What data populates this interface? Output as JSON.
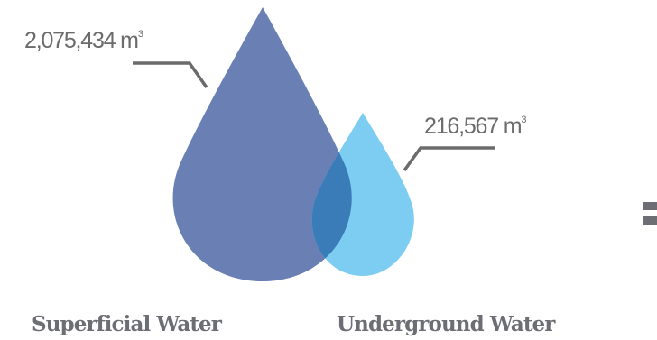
{
  "chart_data": {
    "type": "proportional-area",
    "categories": [
      "Superficial Water",
      "Underground Water"
    ],
    "values": [
      2075434,
      216567
    ],
    "value_labels": [
      "2,075,434",
      "216,567"
    ],
    "unit": "m",
    "unit_superscript": "3",
    "colors": {
      "superficial": "#6a80b5",
      "underground": "#7dcdf2",
      "overlap": "#3a7cb8",
      "leader_line": "#6b6b6b",
      "equals_sign": "#6d6e73"
    }
  },
  "equals_symbol": "="
}
